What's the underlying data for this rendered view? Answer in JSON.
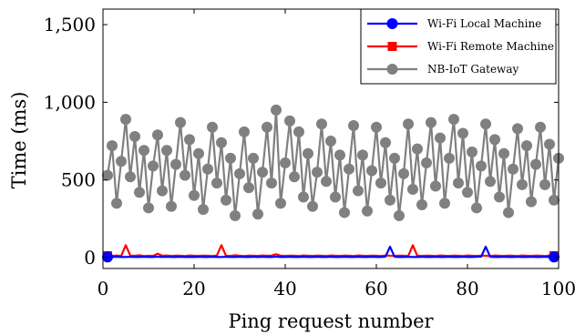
{
  "chart_data": {
    "type": "line",
    "xlabel": "Ping request number",
    "ylabel": "Time (ms)",
    "xlim": [
      0,
      100
    ],
    "ylim": [
      -70,
      1600
    ],
    "xticks": [
      0,
      20,
      40,
      60,
      80,
      100
    ],
    "yticks": [
      0,
      500,
      1000,
      1500
    ],
    "xtick_labels": [
      "0",
      "20",
      "40",
      "60",
      "80",
      "100"
    ],
    "ytick_labels": [
      "0",
      "500",
      "1,000",
      "1,500"
    ],
    "grid": false,
    "legend_position": "top-right",
    "series": [
      {
        "name": "Wi-Fi Local Machine",
        "color": "#0000ff",
        "marker": "circle",
        "marker_every": 98,
        "x": [
          1,
          2,
          3,
          4,
          5,
          6,
          7,
          8,
          9,
          10,
          11,
          12,
          13,
          14,
          15,
          16,
          17,
          18,
          19,
          20,
          21,
          22,
          23,
          24,
          25,
          26,
          27,
          28,
          29,
          30,
          31,
          32,
          33,
          34,
          35,
          36,
          37,
          38,
          39,
          40,
          41,
          42,
          43,
          44,
          45,
          46,
          47,
          48,
          49,
          50,
          51,
          52,
          53,
          54,
          55,
          56,
          57,
          58,
          59,
          60,
          61,
          62,
          63,
          64,
          65,
          66,
          67,
          68,
          69,
          70,
          71,
          72,
          73,
          74,
          75,
          76,
          77,
          78,
          79,
          80,
          81,
          82,
          83,
          84,
          85,
          86,
          87,
          88,
          89,
          90,
          91,
          92,
          93,
          94,
          95,
          96,
          97,
          98,
          99,
          100
        ],
        "values": [
          4,
          4,
          5,
          4,
          4,
          5,
          4,
          4,
          5,
          4,
          4,
          6,
          4,
          5,
          4,
          4,
          5,
          4,
          4,
          4,
          5,
          4,
          4,
          5,
          4,
          4,
          5,
          4,
          4,
          5,
          4,
          4,
          5,
          4,
          5,
          4,
          4,
          6,
          4,
          4,
          5,
          4,
          4,
          5,
          4,
          4,
          5,
          4,
          4,
          5,
          4,
          4,
          5,
          4,
          4,
          5,
          4,
          4,
          5,
          4,
          4,
          6,
          70,
          5,
          4,
          4,
          5,
          4,
          4,
          5,
          4,
          4,
          5,
          4,
          4,
          5,
          4,
          4,
          5,
          4,
          4,
          5,
          6,
          70,
          5,
          4,
          4,
          5,
          4,
          4,
          5,
          4,
          4,
          5,
          4,
          4,
          5,
          4,
          4,
          5
        ]
      },
      {
        "name": "Wi-Fi Remote Machine",
        "color": "#ff0000",
        "marker": "square",
        "marker_every": 98,
        "x": [
          1,
          2,
          3,
          4,
          5,
          6,
          7,
          8,
          9,
          10,
          11,
          12,
          13,
          14,
          15,
          16,
          17,
          18,
          19,
          20,
          21,
          22,
          23,
          24,
          25,
          26,
          27,
          28,
          29,
          30,
          31,
          32,
          33,
          34,
          35,
          36,
          37,
          38,
          39,
          40,
          41,
          42,
          43,
          44,
          45,
          46,
          47,
          48,
          49,
          50,
          51,
          52,
          53,
          54,
          55,
          56,
          57,
          58,
          59,
          60,
          61,
          62,
          63,
          64,
          65,
          66,
          67,
          68,
          69,
          70,
          71,
          72,
          73,
          74,
          75,
          76,
          77,
          78,
          79,
          80,
          81,
          82,
          83,
          84,
          85,
          86,
          87,
          88,
          89,
          90,
          91,
          92,
          93,
          94,
          95,
          96,
          97,
          98,
          99,
          100
        ],
        "values": [
          12,
          10,
          14,
          11,
          80,
          13,
          12,
          15,
          10,
          12,
          11,
          25,
          12,
          14,
          11,
          13,
          12,
          10,
          14,
          12,
          11,
          13,
          12,
          10,
          14,
          80,
          12,
          11,
          15,
          12,
          10,
          13,
          12,
          11,
          14,
          12,
          13,
          22,
          12,
          11,
          13,
          12,
          10,
          14,
          12,
          11,
          13,
          12,
          10,
          14,
          12,
          11,
          13,
          12,
          10,
          14,
          12,
          11,
          13,
          12,
          10,
          14,
          12,
          11,
          13,
          12,
          10,
          80,
          12,
          11,
          13,
          12,
          10,
          14,
          12,
          11,
          13,
          12,
          10,
          14,
          12,
          11,
          13,
          12,
          10,
          14,
          12,
          11,
          13,
          12,
          10,
          14,
          12,
          11,
          13,
          12,
          10,
          14,
          12,
          11
        ]
      },
      {
        "name": "NB-IoT Gateway",
        "color": "#808080",
        "marker": "circle",
        "marker_every": 1,
        "x": [
          1,
          2,
          3,
          4,
          5,
          6,
          7,
          8,
          9,
          10,
          11,
          12,
          13,
          14,
          15,
          16,
          17,
          18,
          19,
          20,
          21,
          22,
          23,
          24,
          25,
          26,
          27,
          28,
          29,
          30,
          31,
          32,
          33,
          34,
          35,
          36,
          37,
          38,
          39,
          40,
          41,
          42,
          43,
          44,
          45,
          46,
          47,
          48,
          49,
          50,
          51,
          52,
          53,
          54,
          55,
          56,
          57,
          58,
          59,
          60,
          61,
          62,
          63,
          64,
          65,
          66,
          67,
          68,
          69,
          70,
          71,
          72,
          73,
          74,
          75,
          76,
          77,
          78,
          79,
          80,
          81,
          82,
          83,
          84,
          85,
          86,
          87,
          88,
          89,
          90,
          91,
          92,
          93,
          94,
          95,
          96,
          97,
          98,
          99,
          100
        ],
        "values": [
          530,
          720,
          350,
          620,
          890,
          520,
          780,
          420,
          690,
          320,
          590,
          790,
          430,
          690,
          330,
          600,
          870,
          530,
          760,
          400,
          670,
          310,
          570,
          840,
          480,
          740,
          370,
          640,
          270,
          540,
          810,
          450,
          640,
          280,
          550,
          840,
          480,
          950,
          350,
          610,
          880,
          520,
          810,
          390,
          670,
          330,
          550,
          860,
          490,
          750,
          390,
          660,
          290,
          570,
          850,
          430,
          660,
          300,
          560,
          840,
          480,
          740,
          370,
          640,
          270,
          540,
          860,
          440,
          700,
          340,
          610,
          870,
          460,
          770,
          350,
          640,
          890,
          480,
          800,
          420,
          680,
          320,
          590,
          860,
          490,
          760,
          390,
          670,
          290,
          570,
          830,
          470,
          720,
          360,
          600,
          840,
          470,
          730,
          370,
          640
        ]
      }
    ]
  }
}
